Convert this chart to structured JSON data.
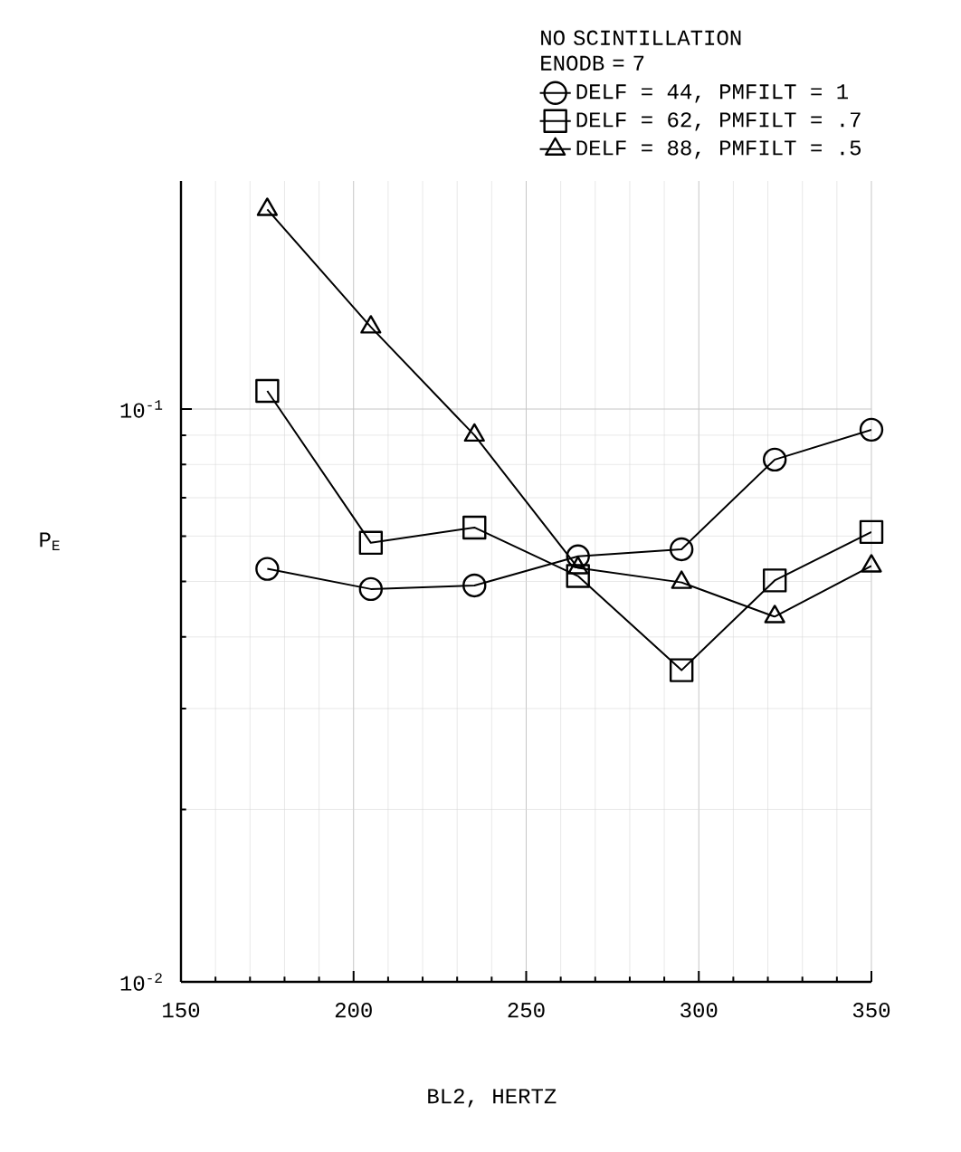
{
  "chart_data": {
    "type": "line",
    "xlabel": "BL2, HERTZ",
    "ylabel": "P$_{E}$",
    "legend_title": "NO SCINTILLATION ENODB = 7",
    "xlim": [
      150,
      350
    ],
    "xticks": [
      150,
      200,
      250,
      300,
      350
    ],
    "ylim": [
      0.01,
      0.25
    ],
    "yticks": [
      {
        "value": 0.01,
        "label": "10$^{-2}$"
      },
      {
        "value": 0.1,
        "label": "10$^{-1}$"
      }
    ],
    "log": "y",
    "grid": true,
    "legend": "top right",
    "line_style": "solid",
    "series": [
      {
        "name": "DELF = 44, PMFILT = 1",
        "color": "#000000",
        "marker": "circle",
        "x": [
          175,
          205,
          235,
          265,
          295,
          322,
          350
        ],
        "values": [
          0.0526,
          0.0485,
          0.0492,
          0.0553,
          0.0569,
          0.0816,
          0.092
        ]
      },
      {
        "name": "DELF = 62, PMFILT = .7",
        "color": "#000000",
        "marker": "square",
        "x": [
          175,
          205,
          235,
          265,
          295,
          322,
          350
        ],
        "values": [
          0.1075,
          0.0584,
          0.0621,
          0.0511,
          0.035,
          0.0502,
          0.061
        ]
      },
      {
        "name": "DELF = 88, PMFILT = .5",
        "color": "#000000",
        "marker": "triangle",
        "x": [
          175,
          205,
          235,
          265,
          295,
          322,
          350
        ],
        "values": [
          0.223,
          0.139,
          0.09,
          0.0528,
          0.0498,
          0.0434,
          0.0532
        ]
      }
    ]
  }
}
